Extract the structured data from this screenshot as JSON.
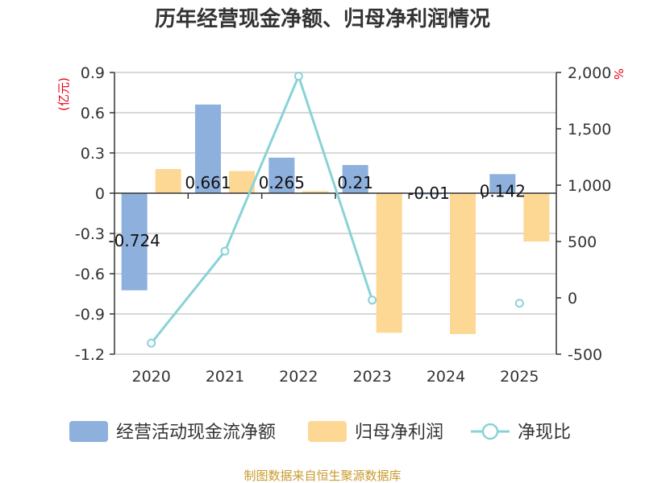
{
  "chart_data": {
    "type": "bar",
    "title": "历年经营现金净额、归母净利润情况",
    "categories": [
      "2020",
      "2021",
      "2022",
      "2023",
      "2024",
      "2025"
    ],
    "series": [
      {
        "name": "经营活动现金流净额",
        "type": "bar",
        "axis": "left",
        "color": "#8eb0dc",
        "values": [
          -0.724,
          0.661,
          0.265,
          0.21,
          -0.01,
          0.142
        ],
        "labels": [
          "-0.724",
          "0.661",
          "0.265",
          "0.21",
          "-0.01",
          "0.142"
        ]
      },
      {
        "name": "归母净利润",
        "type": "bar",
        "axis": "left",
        "color": "#fdd794",
        "values": [
          0.18,
          0.165,
          0.015,
          -1.04,
          -1.05,
          -0.36
        ]
      },
      {
        "name": "净现比",
        "type": "line",
        "axis": "right",
        "color": "#88d3d8",
        "values": [
          -402,
          414,
          1967,
          -20,
          null,
          -48
        ]
      }
    ],
    "left_axis": {
      "unit": "(亿元)",
      "ylim": [
        -1.2,
        0.9
      ],
      "ticks": [
        "0.9",
        "0.6",
        "0.3",
        "0",
        "-0.3",
        "-0.6",
        "-0.9",
        "-1.2"
      ]
    },
    "right_axis": {
      "unit": "%",
      "ylim": [
        -500,
        2000
      ],
      "ticks": [
        "2,000",
        "1,500",
        "1,000",
        "500",
        "0",
        "-500"
      ]
    },
    "grid": true,
    "legend": "bottom",
    "source": "制图数据来自恒生聚源数据库"
  }
}
